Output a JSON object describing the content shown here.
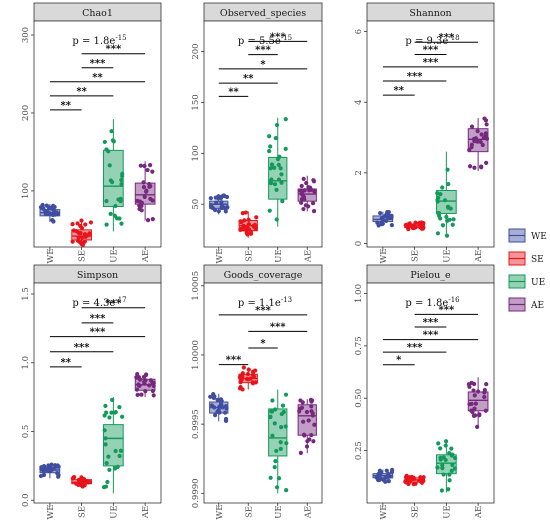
{
  "legend": {
    "items": [
      {
        "label": "WE",
        "color": "#3F4E9E"
      },
      {
        "label": "SE",
        "color": "#E8141C"
      },
      {
        "label": "UE",
        "color": "#139A5B"
      },
      {
        "label": "AE",
        "color": "#76287F"
      }
    ]
  },
  "chart_data": [
    {
      "type": "box",
      "title": "Chao1",
      "categories": [
        "WE",
        "SE",
        "UE",
        "AE"
      ],
      "ylim": [
        28,
        318
      ],
      "yticks": [
        {
          "v": 100,
          "label": "100"
        },
        {
          "v": 200,
          "label": "200"
        },
        {
          "v": 300,
          "label": "300"
        }
      ],
      "pvalue": {
        "base": "p = 1.8e",
        "exp": "-15"
      },
      "boxes": [
        {
          "q1": 68,
          "median": 72,
          "q3": 76,
          "whisker_low": 60,
          "whisker_high": 83
        },
        {
          "q1": 37,
          "median": 42,
          "q3": 50,
          "whisker_low": 30,
          "whisker_high": 62
        },
        {
          "q1": 80,
          "median": 106,
          "q3": 152,
          "whisker_low": 48,
          "whisker_high": 192
        },
        {
          "q1": 83,
          "median": 95,
          "q3": 110,
          "whisker_low": 62,
          "whisker_high": 138
        }
      ],
      "comparisons": [
        {
          "from": "WE",
          "to": "SE",
          "label": "**",
          "y": 204
        },
        {
          "from": "WE",
          "to": "UE",
          "label": "**",
          "y": 222
        },
        {
          "from": "WE",
          "to": "AE",
          "label": "**",
          "y": 240
        },
        {
          "from": "SE",
          "to": "UE",
          "label": "***",
          "y": 258
        },
        {
          "from": "SE",
          "to": "AE",
          "label": "***",
          "y": 276
        }
      ]
    },
    {
      "type": "box",
      "title": "Observed_species",
      "categories": [
        "WE",
        "SE",
        "UE",
        "AE"
      ],
      "ylim": [
        8,
        230
      ],
      "yticks": [
        {
          "v": 50,
          "label": "50"
        },
        {
          "v": 100,
          "label": "100"
        },
        {
          "v": 150,
          "label": "150"
        },
        {
          "v": 200,
          "label": "200"
        }
      ],
      "pvalue": {
        "base": "p = 5.5e",
        "exp": "-15"
      },
      "boxes": [
        {
          "q1": 46,
          "median": 50,
          "q3": 53,
          "whisker_low": 40,
          "whisker_high": 60
        },
        {
          "q1": 24,
          "median": 29,
          "q3": 34,
          "whisker_low": 17,
          "whisker_high": 43
        },
        {
          "q1": 55,
          "median": 73,
          "q3": 96,
          "whisker_low": 28,
          "whisker_high": 135
        },
        {
          "q1": 53,
          "median": 60,
          "q3": 65,
          "whisker_low": 43,
          "whisker_high": 78
        }
      ],
      "comparisons": [
        {
          "from": "WE",
          "to": "SE",
          "label": "**",
          "y": 156
        },
        {
          "from": "WE",
          "to": "UE",
          "label": "**",
          "y": 169
        },
        {
          "from": "WE",
          "to": "AE",
          "label": "*",
          "y": 183
        },
        {
          "from": "SE",
          "to": "UE",
          "label": "***",
          "y": 197
        },
        {
          "from": "SE",
          "to": "AE",
          "label": "***",
          "y": 210
        }
      ]
    },
    {
      "type": "box",
      "title": "Shannon",
      "categories": [
        "WE",
        "SE",
        "UE",
        "AE"
      ],
      "ylim": [
        -0.1,
        6.3
      ],
      "yticks": [
        {
          "v": 0,
          "label": "0"
        },
        {
          "v": 2,
          "label": "2"
        },
        {
          "v": 4,
          "label": "4"
        },
        {
          "v": 6,
          "label": "6"
        }
      ],
      "pvalue": {
        "base": "p = 9.3e",
        "exp": "-18"
      },
      "boxes": [
        {
          "q1": 0.62,
          "median": 0.68,
          "q3": 0.78,
          "whisker_low": 0.5,
          "whisker_high": 0.9
        },
        {
          "q1": 0.45,
          "median": 0.5,
          "q3": 0.55,
          "whisker_low": 0.38,
          "whisker_high": 0.6
        },
        {
          "q1": 0.85,
          "median": 1.2,
          "q3": 1.5,
          "whisker_low": 0.2,
          "whisker_high": 2.6
        },
        {
          "q1": 2.6,
          "median": 2.95,
          "q3": 3.25,
          "whisker_low": 2.05,
          "whisker_high": 3.55
        }
      ],
      "comparisons": [
        {
          "from": "WE",
          "to": "SE",
          "label": "**",
          "y": 4.2
        },
        {
          "from": "WE",
          "to": "UE",
          "label": "***",
          "y": 4.6
        },
        {
          "from": "WE",
          "to": "AE",
          "label": "***",
          "y": 5.0
        },
        {
          "from": "SE",
          "to": "UE",
          "label": "***",
          "y": 5.35
        },
        {
          "from": "SE",
          "to": "AE",
          "label": "***",
          "y": 5.7
        }
      ]
    },
    {
      "type": "box",
      "title": "Simpson",
      "categories": [
        "WE",
        "SE",
        "UE",
        "AE"
      ],
      "ylim": [
        -0.02,
        1.58
      ],
      "yticks": [
        {
          "v": 0,
          "label": "0.0"
        },
        {
          "v": 0.5,
          "label": "0.5"
        },
        {
          "v": 1.0,
          "label": "1.0"
        },
        {
          "v": 1.5,
          "label": "1.5"
        }
      ],
      "pvalue": {
        "base": "p = 4.3e",
        "exp": "-17"
      },
      "boxes": [
        {
          "q1": 0.2,
          "median": 0.22,
          "q3": 0.24,
          "whisker_low": 0.16,
          "whisker_high": 0.26
        },
        {
          "q1": 0.12,
          "median": 0.13,
          "q3": 0.15,
          "whisker_low": 0.1,
          "whisker_high": 0.17
        },
        {
          "q1": 0.25,
          "median": 0.45,
          "q3": 0.55,
          "whisker_low": 0.05,
          "whisker_high": 0.75
        },
        {
          "q1": 0.8,
          "median": 0.84,
          "q3": 0.88,
          "whisker_low": 0.75,
          "whisker_high": 0.92
        }
      ],
      "comparisons": [
        {
          "from": "WE",
          "to": "SE",
          "label": "**",
          "y": 0.97
        },
        {
          "from": "WE",
          "to": "UE",
          "label": "***",
          "y": 1.08
        },
        {
          "from": "WE",
          "to": "AE",
          "label": "***",
          "y": 1.19
        },
        {
          "from": "SE",
          "to": "UE",
          "label": "***",
          "y": 1.29
        },
        {
          "from": "SE",
          "to": "AE",
          "label": "***",
          "y": 1.4
        }
      ]
    },
    {
      "type": "box",
      "title": "Goods_coverage",
      "categories": [
        "WE",
        "SE",
        "UE",
        "AE"
      ],
      "ylim": [
        0.99893,
        1.00052
      ],
      "yticks": [
        {
          "v": 0.999,
          "label": "0.9990"
        },
        {
          "v": 0.9995,
          "label": "0.9995"
        },
        {
          "v": 1.0,
          "label": "1.0000"
        },
        {
          "v": 1.0005,
          "label": "1.0005"
        }
      ],
      "pvalue": {
        "base": "p = 1.1e",
        "exp": "-13"
      },
      "boxes": [
        {
          "q1": 0.99958,
          "median": 0.99962,
          "q3": 0.99966,
          "whisker_low": 0.99952,
          "whisker_high": 0.99972
        },
        {
          "q1": 0.9998,
          "median": 0.99983,
          "q3": 0.99986,
          "whisker_low": 0.99975,
          "whisker_high": 0.99991
        },
        {
          "q1": 0.99927,
          "median": 0.9994,
          "q3": 0.99961,
          "whisker_low": 0.999,
          "whisker_high": 0.99975
        },
        {
          "q1": 0.99942,
          "median": 0.99956,
          "q3": 0.99964,
          "whisker_low": 0.99929,
          "whisker_high": 0.99968
        }
      ],
      "comparisons": [
        {
          "from": "WE",
          "to": "SE",
          "label": "***",
          "y": 0.99993
        },
        {
          "from": "SE",
          "to": "UE",
          "label": "*",
          "y": 1.00005
        },
        {
          "from": "SE",
          "to": "AE",
          "label": "***",
          "y": 1.00017
        },
        {
          "from": "WE",
          "to": "AE",
          "label": "***",
          "y": 1.00029
        }
      ]
    },
    {
      "type": "box",
      "title": "Pielou_e",
      "categories": [
        "WE",
        "SE",
        "UE",
        "AE"
      ],
      "ylim": [
        0.0,
        1.05
      ],
      "yticks": [
        {
          "v": 0.25,
          "label": "0.25"
        },
        {
          "v": 0.5,
          "label": "0.50"
        },
        {
          "v": 0.75,
          "label": "0.75"
        },
        {
          "v": 1.0,
          "label": "1.00"
        }
      ],
      "pvalue": {
        "base": "p = 1.8e",
        "exp": "-16"
      },
      "boxes": [
        {
          "q1": 0.12,
          "median": 0.13,
          "q3": 0.14,
          "whisker_low": 0.1,
          "whisker_high": 0.16
        },
        {
          "q1": 0.1,
          "median": 0.11,
          "q3": 0.12,
          "whisker_low": 0.09,
          "whisker_high": 0.13
        },
        {
          "q1": 0.14,
          "median": 0.19,
          "q3": 0.23,
          "whisker_low": 0.05,
          "whisker_high": 0.3
        },
        {
          "q1": 0.44,
          "median": 0.49,
          "q3": 0.53,
          "whisker_low": 0.36,
          "whisker_high": 0.6
        }
      ],
      "comparisons": [
        {
          "from": "WE",
          "to": "SE",
          "label": "*",
          "y": 0.66
        },
        {
          "from": "WE",
          "to": "UE",
          "label": "***",
          "y": 0.72
        },
        {
          "from": "WE",
          "to": "AE",
          "label": "***",
          "y": 0.78
        },
        {
          "from": "SE",
          "to": "UE",
          "label": "***",
          "y": 0.84
        },
        {
          "from": "SE",
          "to": "AE",
          "label": "***",
          "y": 0.9
        }
      ]
    }
  ]
}
